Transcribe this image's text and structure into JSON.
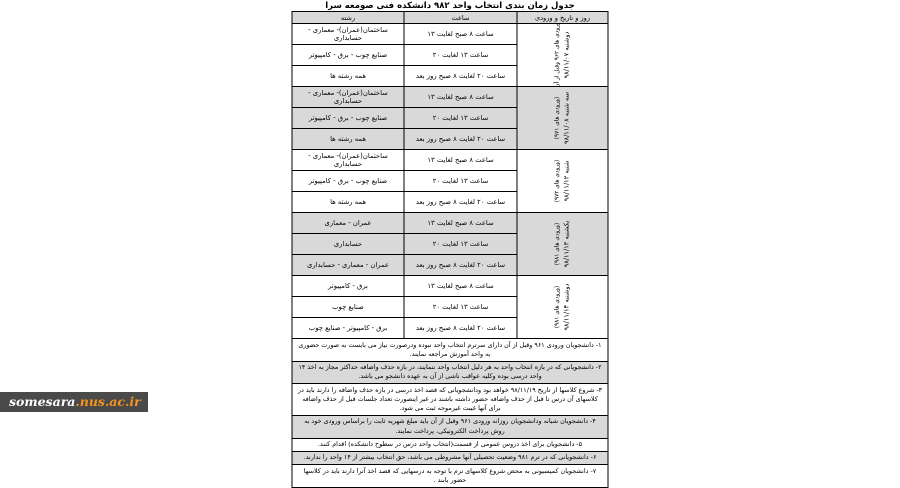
{
  "title": "جدول زمان بندی انتخاب واحد ۹۸۲ دانشکده فنی صومعه سرا",
  "table": {
    "headers": {
      "day": "روز و تاریخ و ورودی",
      "time": "ساعت",
      "major": "رشته"
    },
    "groups": [
      {
        "day": "دوشنبه ۹۸/۱۱/۰۷",
        "cohort": "(ورودی های ۹۶۲ وقبل از آن)",
        "rows": [
          {
            "major": "ساختمان(عمران)- معماری - حسابداری",
            "time": "ساعت ۸ صبح لغایت ۱۳"
          },
          {
            "major": "صنایع چوب - برق - کامپیوتر",
            "time": "ساعت ۱۳ لغایت ۲۰"
          },
          {
            "major": "همه رشته ها",
            "time": "ساعت ۲۰ لغایت ۸ صبح روز بعد"
          }
        ]
      },
      {
        "day": "سه شنبه ۹۸/۱۱/۰۸",
        "cohort": "(ورودی های ۹۷۱)",
        "rows": [
          {
            "major": "ساختمان(عمران)- معماری - حسابداری",
            "time": "ساعت ۸ صبح لغایت ۱۳"
          },
          {
            "major": "صنایع چوب - برق - کامپیوتر",
            "time": "ساعت ۱۳ لغایت ۲۰"
          },
          {
            "major": "همه رشته ها",
            "time": "ساعت ۲۰ لغایت ۸ صبح روز بعد"
          }
        ]
      },
      {
        "day": "شنبه ۹۸/۱۱/۱۲",
        "cohort": "(ورودی های ۹۷۲)",
        "rows": [
          {
            "major": "ساختمان(عمران)- معماری - حسابداری",
            "time": "ساعت ۸ صبح لغایت ۱۳"
          },
          {
            "major": "صنایع چوب - برق - کامپیوتر",
            "time": "ساعت ۱۳ لغایت ۲۰"
          },
          {
            "major": "همه رشته ها",
            "time": "ساعت ۲۰ لغایت ۸ صبح روز بعد"
          }
        ]
      },
      {
        "day": "یکشنبه ۹۸/۱۱/۱۳",
        "cohort": "(ورودی های ۹۸۱)",
        "rows": [
          {
            "major": "عمران - معماری",
            "time": "ساعت ۸ صبح لغایت ۱۳"
          },
          {
            "major": "حسابداری",
            "time": "ساعت ۱۳ لغایت ۲۰"
          },
          {
            "major": "عمران - معماری - حسابداری",
            "time": "ساعت ۲۰ لغایت ۸ صبح روز بعد"
          }
        ]
      },
      {
        "day": "دوشنبه ۹۸/۱۱/۱۴",
        "cohort": "(ورودی های ۹۸۱)",
        "rows": [
          {
            "major": "برق - کامپیوتر",
            "time": "ساعت ۸ صبح لغایت ۱۳"
          },
          {
            "major": "صنایع چوب",
            "time": "ساعت ۱۳ لغایت ۲۰"
          },
          {
            "major": "برق - کامپیوتر - صنایع چوب",
            "time": "ساعت ۲۰ لغایت ۸ صبح روز بعد"
          }
        ]
      }
    ]
  },
  "notes": [
    "۱- دانشجویان ورودی ۹۶۱ وقبل از آن دارای سرترم انتخاب واحد نبوده ودرصورت نیاز می بایست به صورت حضوری به واحد آموزش مراجعه نمایند.",
    "۲- دانشجویانی که در بازه انتخاب واحد به هر دلیل انتخاب واحد ننمایند، در بازه حذف واضافه حداکثر مجاز به اخذ ۱۴ واحد درسی بوده وکلیه عواقب ناشی از آن به عهده دانشجو می باشد.",
    "۳- شروع کلاسها از تاریخ ۹۸/۱۱/۱۹ خواهد بود ودانشجویانی که قصد اخذ درسی در بازه حذف واضافه را دارند باید در کلاسهای آن درس تا قبل از حذف واضافه حضور داشته باشند در غیر اینصورت تعداد جلسات قبل از حذف واضافه برای آنها غیبت غیرموجه ثبت می شود.",
    "۴- دانشجویان شبانه ودانشجویان روزانه ورودی ۹۶۱ وقبل از آن باید مبلغ شهریه ثابت را براساس ورودی خود به روش پرداخت الکترونیکی، پرداخت نمایند.",
    "۵- دانشجویان برای اخذ دروس عمومی از قسمت(انتخاب واحد درس در سطوح دانشکده) اقدام کنند.",
    "۶- دانشجویانی که در ترم ۹۸۱ وضعیت تحصیلی آنها مشروطی می باشد، حق انتخاب بیشتر از ۱۴ واحد را ندارند.",
    "۷- دانشجویان کمیسیونی به محض شروع کلاسهای ترم با توجه به درسهایی که قصد اخذ آنرا دارند باید در کلاسها حضور یابند ."
  ],
  "watermark": {
    "site": "somesara",
    "domain": ".nus.ac.ir"
  }
}
